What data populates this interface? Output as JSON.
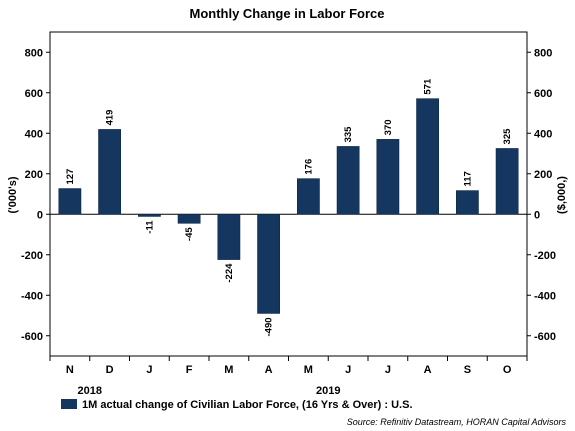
{
  "chart_data": {
    "type": "bar",
    "title": "Monthly Change in Labor Force",
    "categories": [
      "N",
      "D",
      "J",
      "F",
      "M",
      "A",
      "M",
      "J",
      "J",
      "A",
      "S",
      "O"
    ],
    "year_labels": [
      "2018",
      "2019"
    ],
    "series": [
      {
        "name": "1M actual change of Civilian Labor Force, (16 Yrs & Over) : U.S.",
        "values": [
          127,
          419,
          -11,
          -45,
          -224,
          -490,
          176,
          335,
          370,
          571,
          117,
          325
        ],
        "color": "#15365f"
      }
    ],
    "data_labels": [
      "127",
      "419",
      "-11",
      "-45",
      "-224",
      "-490",
      "176",
      "335",
      "370",
      "571",
      "117",
      "325"
    ],
    "ylabel_left": "('000's)",
    "ylabel_right": "($,000,)",
    "ylim": [
      -700,
      900
    ],
    "yticks": [
      -600,
      -400,
      -200,
      0,
      200,
      400,
      600,
      800
    ],
    "grid": false,
    "legend_position": "bottom",
    "source": "Source: Refinitiv Datastream, HORAN Capital Advisors"
  }
}
